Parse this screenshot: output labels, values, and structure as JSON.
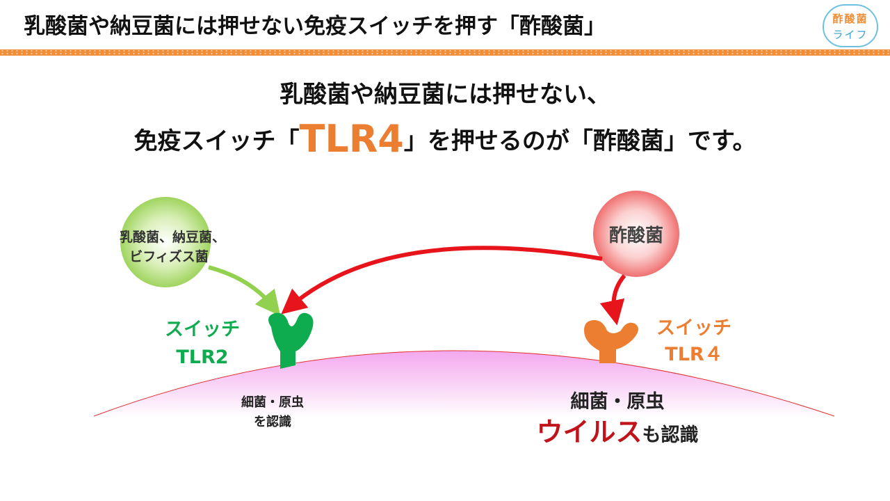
{
  "header": {
    "title": "乳酸菌や納豆菌には押せない免疫スイッチを押す「酢酸菌」"
  },
  "logo": {
    "line1": "酢酸菌",
    "line2": "ライフ"
  },
  "headline": {
    "line1": "乳酸菌や納豆菌には押せない、",
    "line2_pre": "免疫スイッチ「",
    "line2_highlight": "TLR4",
    "line2_post": "」を押せるのが「酢酸菌」です。"
  },
  "diagram": {
    "left_circle": {
      "line1": "乳酸菌、納豆菌、",
      "line2": "ビフィズス菌"
    },
    "right_circle": {
      "label": "酢酸菌"
    },
    "left_switch": {
      "line1": "スイッチ",
      "line2": "TLR2"
    },
    "right_switch": {
      "line1": "スイッチ",
      "line2": "TLR４"
    },
    "left_recognition": {
      "line1": "細菌・原虫",
      "line2": "を認識"
    },
    "right_recognition": {
      "line1": "細菌・原虫",
      "line2_highlight": "ウイルス",
      "line2_post": "も認識"
    }
  },
  "colors": {
    "accent_orange": "#ec7e32",
    "green": "#0eab4f",
    "red": "#e8141b",
    "dark_red": "#c0141b",
    "membrane_pink": "#f5b8f0"
  }
}
